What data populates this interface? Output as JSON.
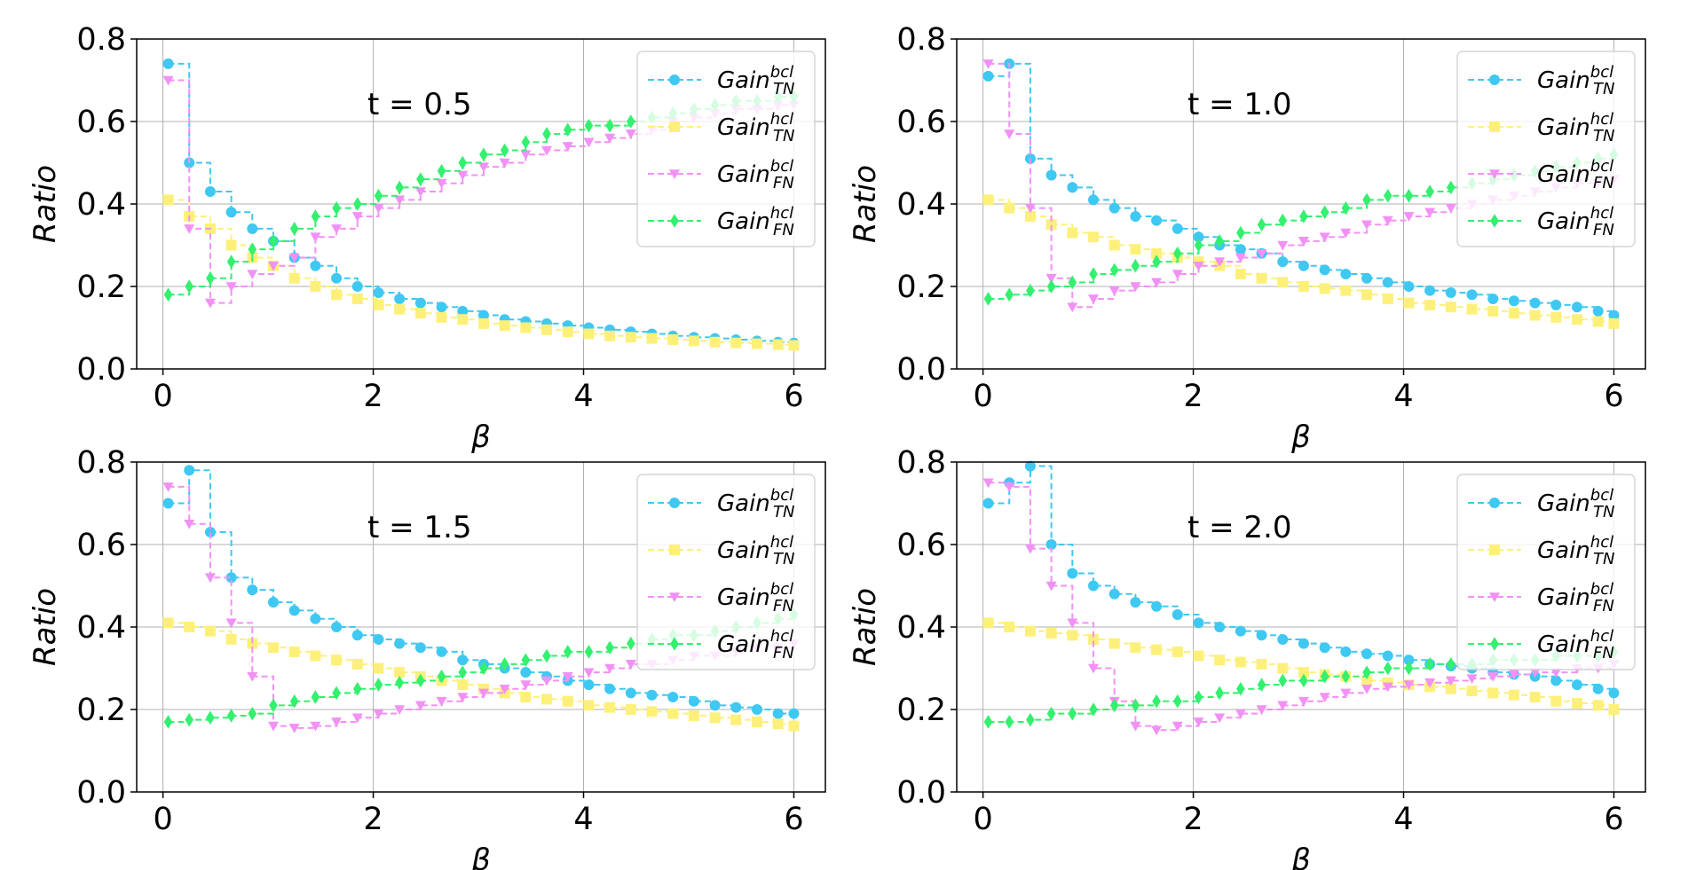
{
  "chart_data": [
    {
      "type": "line",
      "annotation": "t = 0.5",
      "xlabel": "β",
      "ylabel": "Ratio",
      "xlim": [
        -0.25,
        6.3
      ],
      "ylim": [
        0,
        0.8
      ],
      "xticks": [
        "0",
        "2",
        "4",
        "6"
      ],
      "yticks": [
        "0.0",
        "0.2",
        "0.4",
        "0.6",
        "0.8"
      ],
      "grid": true,
      "legend_loc": "top-right",
      "x": [
        0.05,
        0.25,
        0.45,
        0.65,
        0.85,
        1.05,
        1.25,
        1.45,
        1.65,
        1.85,
        2.05,
        2.25,
        2.45,
        2.65,
        2.85,
        3.05,
        3.25,
        3.45,
        3.65,
        3.85,
        4.05,
        4.25,
        4.45,
        4.65,
        4.85,
        5.05,
        5.25,
        5.45,
        5.65,
        5.85,
        6.0
      ],
      "series": [
        {
          "name": "Gain_TN^bcl",
          "values": [
            0.74,
            0.5,
            0.43,
            0.38,
            0.34,
            0.31,
            0.27,
            0.25,
            0.22,
            0.2,
            0.185,
            0.17,
            0.16,
            0.15,
            0.14,
            0.13,
            0.12,
            0.115,
            0.11,
            0.105,
            0.1,
            0.095,
            0.09,
            0.085,
            0.08,
            0.077,
            0.074,
            0.071,
            0.068,
            0.065,
            0.063
          ]
        },
        {
          "name": "Gain_TN^hcl",
          "values": [
            0.41,
            0.37,
            0.34,
            0.3,
            0.27,
            0.25,
            0.22,
            0.2,
            0.18,
            0.17,
            0.155,
            0.145,
            0.135,
            0.125,
            0.12,
            0.11,
            0.105,
            0.1,
            0.095,
            0.09,
            0.085,
            0.08,
            0.077,
            0.074,
            0.071,
            0.068,
            0.065,
            0.063,
            0.061,
            0.059,
            0.057
          ]
        },
        {
          "name": "Gain_FN^bcl",
          "values": [
            0.7,
            0.34,
            0.16,
            0.2,
            0.23,
            0.25,
            0.27,
            0.32,
            0.34,
            0.37,
            0.39,
            0.41,
            0.43,
            0.45,
            0.47,
            0.49,
            0.5,
            0.52,
            0.53,
            0.54,
            0.55,
            0.56,
            0.57,
            0.58,
            0.6,
            0.61,
            0.62,
            0.63,
            0.63,
            0.64,
            0.64
          ]
        },
        {
          "name": "Gain_FN^hcl",
          "values": [
            0.18,
            0.2,
            0.22,
            0.26,
            0.29,
            0.31,
            0.34,
            0.37,
            0.39,
            0.4,
            0.42,
            0.44,
            0.46,
            0.48,
            0.5,
            0.52,
            0.53,
            0.55,
            0.57,
            0.58,
            0.59,
            0.59,
            0.6,
            0.61,
            0.62,
            0.63,
            0.64,
            0.65,
            0.65,
            0.66,
            0.66
          ]
        }
      ]
    },
    {
      "type": "line",
      "annotation": "t = 1.0",
      "xlabel": "β",
      "ylabel": "Ratio",
      "xlim": [
        -0.25,
        6.3
      ],
      "ylim": [
        0,
        0.8
      ],
      "xticks": [
        "0",
        "2",
        "4",
        "6"
      ],
      "yticks": [
        "0.0",
        "0.2",
        "0.4",
        "0.6",
        "0.8"
      ],
      "grid": true,
      "legend_loc": "top-right",
      "x": [
        0.05,
        0.25,
        0.45,
        0.65,
        0.85,
        1.05,
        1.25,
        1.45,
        1.65,
        1.85,
        2.05,
        2.25,
        2.45,
        2.65,
        2.85,
        3.05,
        3.25,
        3.45,
        3.65,
        3.85,
        4.05,
        4.25,
        4.45,
        4.65,
        4.85,
        5.05,
        5.25,
        5.45,
        5.65,
        5.85,
        6.0
      ],
      "series": [
        {
          "name": "Gain_TN^bcl",
          "values": [
            0.71,
            0.74,
            0.51,
            0.47,
            0.44,
            0.41,
            0.39,
            0.37,
            0.36,
            0.34,
            0.32,
            0.3,
            0.29,
            0.28,
            0.26,
            0.25,
            0.24,
            0.23,
            0.22,
            0.21,
            0.2,
            0.19,
            0.185,
            0.18,
            0.17,
            0.165,
            0.16,
            0.155,
            0.15,
            0.14,
            0.13
          ]
        },
        {
          "name": "Gain_TN^hcl",
          "values": [
            0.41,
            0.39,
            0.37,
            0.35,
            0.33,
            0.32,
            0.3,
            0.29,
            0.28,
            0.27,
            0.26,
            0.25,
            0.23,
            0.22,
            0.21,
            0.2,
            0.195,
            0.19,
            0.18,
            0.17,
            0.16,
            0.155,
            0.15,
            0.145,
            0.14,
            0.135,
            0.13,
            0.125,
            0.12,
            0.115,
            0.11
          ]
        },
        {
          "name": "Gain_FN^bcl",
          "values": [
            0.74,
            0.57,
            0.39,
            0.22,
            0.15,
            0.17,
            0.19,
            0.2,
            0.21,
            0.23,
            0.25,
            0.26,
            0.27,
            0.28,
            0.3,
            0.31,
            0.32,
            0.33,
            0.35,
            0.36,
            0.37,
            0.38,
            0.39,
            0.4,
            0.41,
            0.42,
            0.43,
            0.44,
            0.45,
            0.45,
            0.46
          ]
        },
        {
          "name": "Gain_FN^hcl",
          "values": [
            0.17,
            0.18,
            0.19,
            0.2,
            0.21,
            0.23,
            0.24,
            0.25,
            0.26,
            0.28,
            0.3,
            0.31,
            0.33,
            0.35,
            0.36,
            0.37,
            0.38,
            0.39,
            0.41,
            0.42,
            0.42,
            0.43,
            0.44,
            0.45,
            0.46,
            0.47,
            0.48,
            0.49,
            0.5,
            0.51,
            0.52
          ]
        }
      ]
    },
    {
      "type": "line",
      "annotation": "t = 1.5",
      "xlabel": "β",
      "ylabel": "Ratio",
      "xlim": [
        -0.25,
        6.3
      ],
      "ylim": [
        0,
        0.8
      ],
      "xticks": [
        "0",
        "2",
        "4",
        "6"
      ],
      "yticks": [
        "0.0",
        "0.2",
        "0.4",
        "0.6",
        "0.8"
      ],
      "grid": true,
      "legend_loc": "top-right",
      "x": [
        0.05,
        0.25,
        0.45,
        0.65,
        0.85,
        1.05,
        1.25,
        1.45,
        1.65,
        1.85,
        2.05,
        2.25,
        2.45,
        2.65,
        2.85,
        3.05,
        3.25,
        3.45,
        3.65,
        3.85,
        4.05,
        4.25,
        4.45,
        4.65,
        4.85,
        5.05,
        5.25,
        5.45,
        5.65,
        5.85,
        6.0
      ],
      "series": [
        {
          "name": "Gain_TN^bcl",
          "values": [
            0.7,
            0.78,
            0.63,
            0.52,
            0.49,
            0.46,
            0.44,
            0.42,
            0.4,
            0.38,
            0.37,
            0.36,
            0.35,
            0.34,
            0.32,
            0.31,
            0.3,
            0.29,
            0.28,
            0.27,
            0.26,
            0.25,
            0.24,
            0.235,
            0.23,
            0.22,
            0.21,
            0.205,
            0.2,
            0.19,
            0.19
          ]
        },
        {
          "name": "Gain_TN^hcl",
          "values": [
            0.41,
            0.4,
            0.39,
            0.37,
            0.36,
            0.35,
            0.34,
            0.33,
            0.32,
            0.31,
            0.3,
            0.29,
            0.28,
            0.27,
            0.26,
            0.25,
            0.24,
            0.23,
            0.225,
            0.22,
            0.21,
            0.205,
            0.2,
            0.195,
            0.19,
            0.185,
            0.18,
            0.175,
            0.17,
            0.165,
            0.16
          ]
        },
        {
          "name": "Gain_FN^bcl",
          "values": [
            0.74,
            0.65,
            0.52,
            0.41,
            0.28,
            0.16,
            0.155,
            0.16,
            0.17,
            0.18,
            0.19,
            0.2,
            0.21,
            0.22,
            0.23,
            0.24,
            0.25,
            0.26,
            0.27,
            0.28,
            0.29,
            0.3,
            0.31,
            0.31,
            0.32,
            0.33,
            0.33,
            0.34,
            0.35,
            0.35,
            0.36
          ]
        },
        {
          "name": "Gain_FN^hcl",
          "values": [
            0.17,
            0.175,
            0.18,
            0.185,
            0.19,
            0.21,
            0.22,
            0.23,
            0.24,
            0.25,
            0.26,
            0.265,
            0.27,
            0.28,
            0.29,
            0.3,
            0.31,
            0.32,
            0.33,
            0.34,
            0.34,
            0.35,
            0.36,
            0.37,
            0.38,
            0.38,
            0.39,
            0.4,
            0.41,
            0.42,
            0.43
          ]
        }
      ]
    },
    {
      "type": "line",
      "annotation": "t = 2.0",
      "xlabel": "β",
      "ylabel": "Ratio",
      "xlim": [
        -0.25,
        6.3
      ],
      "ylim": [
        0,
        0.8
      ],
      "xticks": [
        "0",
        "2",
        "4",
        "6"
      ],
      "yticks": [
        "0.0",
        "0.2",
        "0.4",
        "0.6",
        "0.8"
      ],
      "grid": true,
      "legend_loc": "top-right",
      "x": [
        0.05,
        0.25,
        0.45,
        0.65,
        0.85,
        1.05,
        1.25,
        1.45,
        1.65,
        1.85,
        2.05,
        2.25,
        2.45,
        2.65,
        2.85,
        3.05,
        3.25,
        3.45,
        3.65,
        3.85,
        4.05,
        4.25,
        4.45,
        4.65,
        4.85,
        5.05,
        5.25,
        5.45,
        5.65,
        5.85,
        6.0
      ],
      "series": [
        {
          "name": "Gain_TN^bcl",
          "values": [
            0.7,
            0.75,
            0.79,
            0.6,
            0.53,
            0.5,
            0.48,
            0.46,
            0.45,
            0.43,
            0.41,
            0.4,
            0.39,
            0.38,
            0.37,
            0.36,
            0.35,
            0.34,
            0.335,
            0.33,
            0.32,
            0.31,
            0.305,
            0.3,
            0.29,
            0.285,
            0.28,
            0.27,
            0.26,
            0.25,
            0.24
          ]
        },
        {
          "name": "Gain_TN^hcl",
          "values": [
            0.41,
            0.4,
            0.39,
            0.385,
            0.38,
            0.37,
            0.36,
            0.35,
            0.345,
            0.34,
            0.33,
            0.32,
            0.315,
            0.31,
            0.3,
            0.29,
            0.285,
            0.28,
            0.27,
            0.265,
            0.26,
            0.255,
            0.25,
            0.245,
            0.24,
            0.235,
            0.23,
            0.22,
            0.215,
            0.21,
            0.2
          ]
        },
        {
          "name": "Gain_FN^bcl",
          "values": [
            0.75,
            0.74,
            0.59,
            0.5,
            0.41,
            0.3,
            0.22,
            0.16,
            0.15,
            0.16,
            0.17,
            0.18,
            0.19,
            0.2,
            0.21,
            0.22,
            0.23,
            0.24,
            0.25,
            0.255,
            0.26,
            0.265,
            0.27,
            0.275,
            0.28,
            0.285,
            0.29,
            0.29,
            0.3,
            0.3,
            0.31
          ]
        },
        {
          "name": "Gain_FN^hcl",
          "values": [
            0.17,
            0.17,
            0.175,
            0.19,
            0.19,
            0.2,
            0.21,
            0.21,
            0.22,
            0.22,
            0.23,
            0.24,
            0.25,
            0.26,
            0.27,
            0.27,
            0.28,
            0.28,
            0.29,
            0.3,
            0.3,
            0.31,
            0.31,
            0.31,
            0.32,
            0.32,
            0.32,
            0.33,
            0.33,
            0.33,
            0.34
          ]
        }
      ]
    }
  ],
  "legend": [
    {
      "base": "Gain",
      "sup": "bcl",
      "sub": "TN",
      "color": "#3ec8f2",
      "marker": "circle"
    },
    {
      "base": "Gain",
      "sup": "hcl",
      "sub": "TN",
      "color": "#fdf07a",
      "marker": "square"
    },
    {
      "base": "Gain",
      "sup": "bcl",
      "sub": "FN",
      "color": "#f291f5",
      "marker": "triangle-down"
    },
    {
      "base": "Gain",
      "sup": "hcl",
      "sub": "FN",
      "color": "#33f06e",
      "marker": "diamond"
    }
  ]
}
